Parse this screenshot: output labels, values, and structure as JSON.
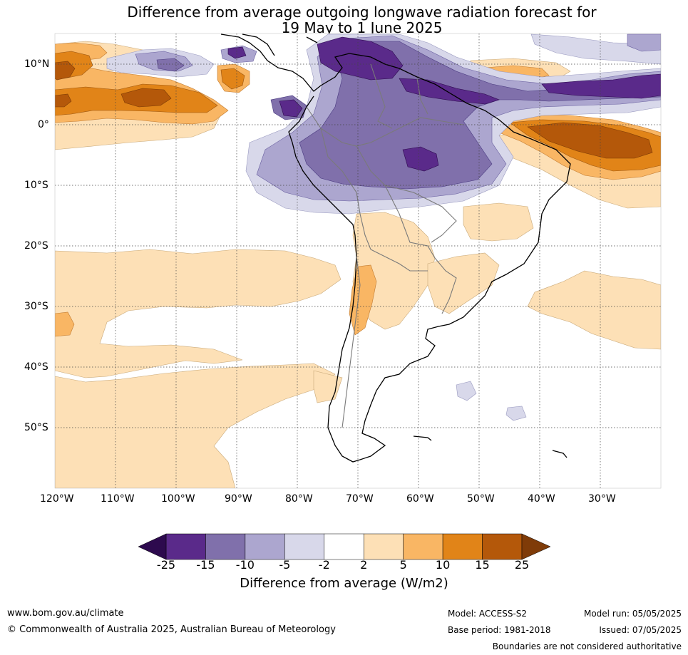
{
  "title_line1": "Difference from average outgoing longwave radiation forecast for",
  "title_line2": "19 May to 1 June 2025",
  "map": {
    "lat_labels": [
      "10°N",
      "0°",
      "10°S",
      "20°S",
      "30°S",
      "40°S",
      "50°S"
    ],
    "lon_labels": [
      "120°W",
      "110°W",
      "100°W",
      "90°W",
      "80°W",
      "70°W",
      "60°W",
      "50°W",
      "40°W",
      "30°W"
    ],
    "lat_values": [
      10,
      0,
      -10,
      -20,
      -30,
      -40,
      -50
    ],
    "lon_values": [
      -120,
      -110,
      -100,
      -90,
      -80,
      -70,
      -60,
      -50,
      -40,
      -30
    ],
    "lon_range": [
      -120,
      -20
    ],
    "lat_range": [
      -60,
      15
    ]
  },
  "colorbar": {
    "labels": [
      "-25",
      "-15",
      "-10",
      "-5",
      "-2",
      "2",
      "5",
      "10",
      "15",
      "25"
    ],
    "colors": [
      "#5a2a8a",
      "#8070ab",
      "#aca6cf",
      "#d8d8ea",
      "#ffffff",
      "#fde0b6",
      "#f9b664",
      "#e18418",
      "#b4580a"
    ],
    "under_color": "#2d0a4e",
    "over_color": "#7f3b08",
    "title": "Difference from average (W/m2)"
  },
  "footer": {
    "website": "www.bom.gov.au/climate",
    "copyright": "© Commonwealth of Australia 2025, Australian Bureau of Meteorology",
    "model": "Model: ACCESS-S2",
    "base_period": "Base period: 1981-2018",
    "model_run": "Model run: 05/05/2025",
    "issued": "Issued: 07/05/2025",
    "disclaimer": "Boundaries are not considered authoritative"
  }
}
